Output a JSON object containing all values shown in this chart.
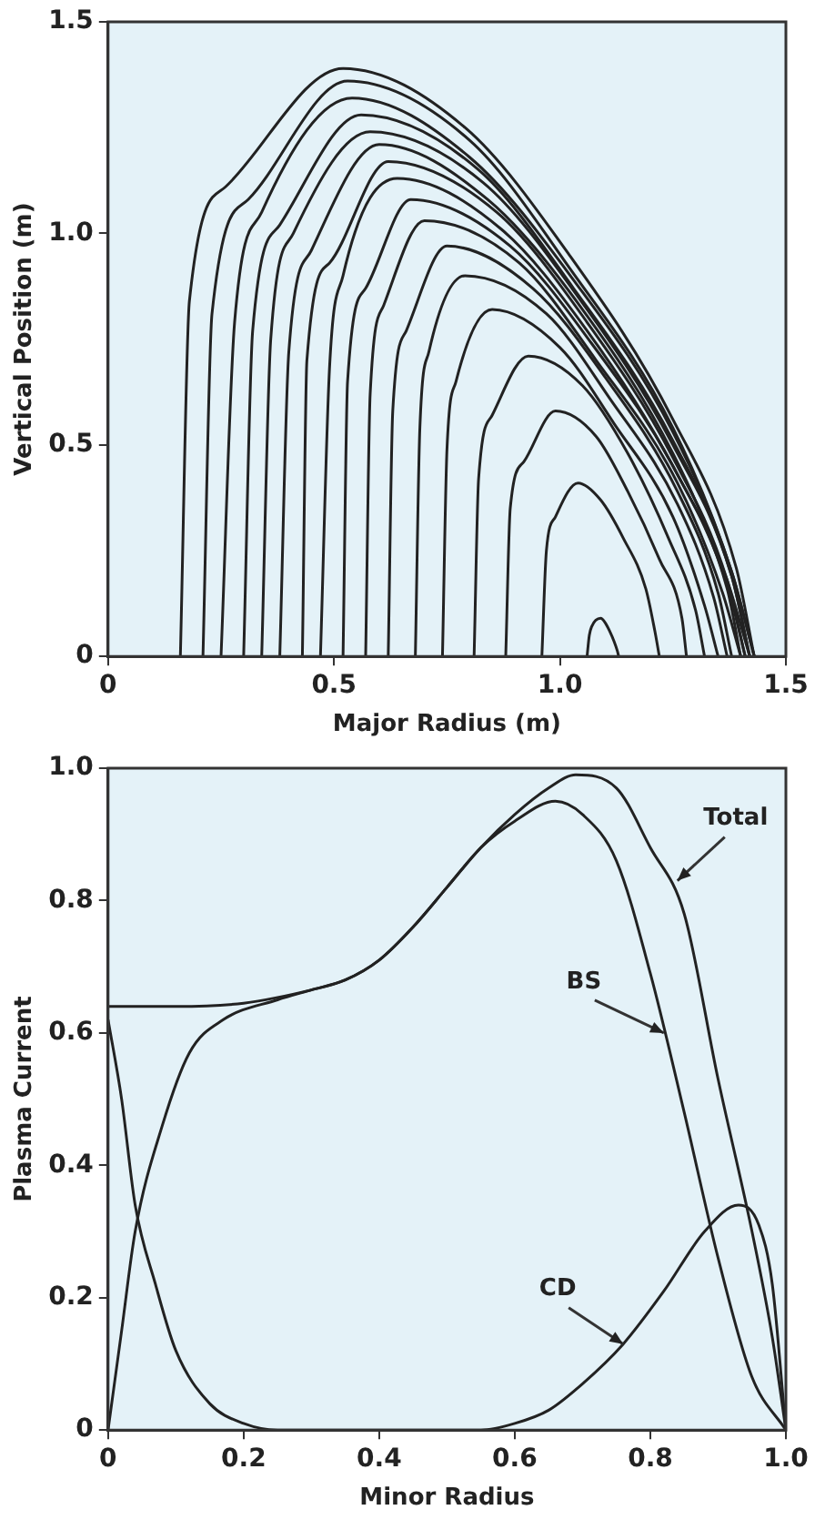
{
  "chart_data": [
    {
      "type": "line",
      "xlabel": "Major Radius (m)",
      "ylabel": "Vertical Position (m)",
      "xlim": [
        0,
        1.5
      ],
      "ylim": [
        0,
        1.5
      ],
      "xticks": [
        0,
        0.5,
        {
          "value": 1,
          "label": "1.0"
        },
        1.5
      ],
      "yticks": [
        0,
        0.5,
        {
          "value": 1,
          "label": "1.0"
        },
        1.5
      ],
      "marker": "none",
      "line_style": "solid",
      "series": [
        {
          "color": "#222222",
          "x": [
            0.16,
            0.18,
            0.26,
            0.52,
            0.79,
            1.02,
            1.25,
            1.39,
            1.43
          ],
          "values": [
            0,
            0.84,
            1.11,
            1.39,
            1.25,
            0.95,
            0.56,
            0.21,
            0
          ]
        },
        {
          "color": "#222222",
          "x": [
            0.21,
            0.23,
            0.31,
            0.53,
            0.8,
            1.02,
            1.25,
            1.38,
            1.43
          ],
          "values": [
            0,
            0.81,
            1.08,
            1.36,
            1.22,
            0.92,
            0.54,
            0.2,
            0
          ]
        },
        {
          "color": "#222222",
          "x": [
            0.25,
            0.28,
            0.34,
            0.54,
            0.8,
            1.03,
            1.25,
            1.38,
            1.43
          ],
          "values": [
            0,
            0.79,
            1.05,
            1.32,
            1.18,
            0.89,
            0.53,
            0.2,
            0
          ]
        },
        {
          "color": "#222222",
          "x": [
            0.3,
            0.32,
            0.38,
            0.56,
            0.82,
            1.03,
            1.25,
            1.38,
            1.42
          ],
          "values": [
            0,
            0.77,
            1.02,
            1.28,
            1.15,
            0.87,
            0.51,
            0.19,
            0
          ]
        },
        {
          "color": "#222222",
          "x": [
            0.34,
            0.36,
            0.41,
            0.58,
            0.83,
            1.04,
            1.25,
            1.38,
            1.42
          ],
          "values": [
            0,
            0.75,
            1.0,
            1.24,
            1.12,
            0.85,
            0.5,
            0.19,
            0
          ]
        },
        {
          "color": "#222222",
          "x": [
            0.38,
            0.4,
            0.45,
            0.6,
            0.84,
            1.05,
            1.25,
            1.37,
            1.42
          ],
          "values": [
            0,
            0.72,
            0.96,
            1.21,
            1.08,
            0.82,
            0.48,
            0.18,
            0
          ]
        },
        {
          "color": "#222222",
          "x": [
            0.43,
            0.44,
            0.49,
            0.62,
            0.86,
            1.06,
            1.25,
            1.37,
            1.41
          ],
          "values": [
            0,
            0.7,
            0.93,
            1.17,
            1.05,
            0.79,
            0.47,
            0.18,
            0
          ]
        },
        {
          "color": "#222222",
          "x": [
            0.47,
            0.49,
            0.52,
            0.64,
            0.87,
            1.06,
            1.25,
            1.37,
            1.41
          ],
          "values": [
            0,
            0.68,
            0.9,
            1.13,
            1.01,
            0.77,
            0.45,
            0.17,
            0
          ]
        },
        {
          "color": "#222222",
          "x": [
            0.52,
            0.53,
            0.57,
            0.67,
            0.89,
            1.07,
            1.26,
            1.37,
            1.4
          ],
          "values": [
            0,
            0.65,
            0.87,
            1.08,
            0.97,
            0.74,
            0.43,
            0.16,
            0
          ]
        },
        {
          "color": "#222222",
          "x": [
            0.57,
            0.58,
            0.61,
            0.7,
            0.91,
            1.08,
            1.26,
            1.36,
            1.4
          ],
          "values": [
            0,
            0.62,
            0.83,
            1.03,
            0.93,
            0.7,
            0.41,
            0.15,
            0
          ]
        },
        {
          "color": "#222222",
          "x": [
            0.62,
            0.63,
            0.66,
            0.75,
            0.94,
            1.1,
            1.26,
            1.35,
            1.38
          ],
          "values": [
            0,
            0.58,
            0.77,
            0.97,
            0.87,
            0.66,
            0.39,
            0.15,
            0
          ]
        },
        {
          "color": "#222222",
          "x": [
            0.68,
            0.69,
            0.71,
            0.79,
            0.97,
            1.11,
            1.26,
            1.34,
            1.37
          ],
          "values": [
            0,
            0.54,
            0.72,
            0.9,
            0.81,
            0.61,
            0.36,
            0.14,
            0
          ]
        },
        {
          "color": "#222222",
          "x": [
            0.74,
            0.75,
            0.77,
            0.85,
            1.0,
            1.12,
            1.25,
            1.32,
            1.35
          ],
          "values": [
            0,
            0.49,
            0.65,
            0.82,
            0.73,
            0.55,
            0.33,
            0.12,
            0
          ]
        },
        {
          "color": "#222222",
          "x": [
            0.81,
            0.82,
            0.85,
            0.93,
            1.05,
            1.15,
            1.24,
            1.3,
            1.32
          ],
          "values": [
            0,
            0.42,
            0.57,
            0.71,
            0.64,
            0.48,
            0.28,
            0.11,
            0
          ]
        },
        {
          "color": "#222222",
          "x": [
            0.88,
            0.89,
            0.92,
            0.99,
            1.08,
            1.15,
            1.22,
            1.27,
            1.28
          ],
          "values": [
            0,
            0.35,
            0.46,
            0.58,
            0.52,
            0.39,
            0.23,
            0.09,
            0
          ]
        },
        {
          "color": "#222222",
          "x": [
            0.96,
            0.97,
            0.99,
            1.04,
            1.09,
            1.14,
            1.19,
            1.21,
            1.22
          ],
          "values": [
            0,
            0.25,
            0.33,
            0.41,
            0.37,
            0.28,
            0.16,
            0.06,
            0
          ]
        },
        {
          "color": "#222222",
          "x": [
            1.06,
            1.065,
            1.07,
            1.09,
            1.1,
            1.11,
            1.12,
            1.127,
            1.13
          ],
          "values": [
            0,
            0.05,
            0.07,
            0.09,
            0.08,
            0.06,
            0.035,
            0.013,
            0
          ]
        }
      ]
    },
    {
      "type": "line",
      "xlabel": "Minor Radius",
      "ylabel": "Plasma Current",
      "xlim": [
        0,
        1
      ],
      "ylim": [
        0,
        1
      ],
      "xticks": [
        0,
        0.2,
        0.4,
        0.6,
        0.8,
        {
          "value": 1,
          "label": "1.0"
        }
      ],
      "yticks": [
        0,
        0.2,
        0.4,
        0.6,
        0.8,
        {
          "value": 1,
          "label": "1.0"
        }
      ],
      "marker": "none",
      "line_style": "solid",
      "series": [
        {
          "color": "#222222",
          "x": [
            0,
            0.1,
            0.2,
            0.3,
            0.35,
            0.4,
            0.45,
            0.5,
            0.55,
            0.6,
            0.65,
            0.69,
            0.75,
            0.8,
            0.85,
            0.9,
            0.95,
            0.98,
            1.0
          ],
          "values": [
            0.64,
            0.64,
            0.645,
            0.665,
            0.68,
            0.71,
            0.76,
            0.82,
            0.88,
            0.93,
            0.97,
            0.99,
            0.97,
            0.88,
            0.78,
            0.53,
            0.3,
            0.14,
            0
          ]
        },
        {
          "color": "#222222",
          "x": [
            0,
            0.02,
            0.04,
            0.08,
            0.12,
            0.17,
            0.25,
            0.3,
            0.35,
            0.4,
            0.45,
            0.5,
            0.55,
            0.6,
            0.66,
            0.7,
            0.75,
            0.8,
            0.85,
            0.9,
            0.95,
            1.0
          ],
          "values": [
            0,
            0.15,
            0.3,
            0.46,
            0.57,
            0.62,
            0.65,
            0.665,
            0.68,
            0.71,
            0.76,
            0.82,
            0.88,
            0.92,
            0.95,
            0.93,
            0.86,
            0.69,
            0.48,
            0.26,
            0.08,
            0
          ]
        },
        {
          "color": "#222222",
          "x": [
            0,
            0.02,
            0.04,
            0.07,
            0.1,
            0.15,
            0.2,
            0.25,
            0.55,
            0.6,
            0.65,
            0.7,
            0.76,
            0.82,
            0.88,
            0.93,
            0.96,
            0.98,
            1.0
          ],
          "values": [
            0.62,
            0.5,
            0.34,
            0.22,
            0.12,
            0.04,
            0.01,
            0,
            0,
            0.01,
            0.03,
            0.07,
            0.13,
            0.21,
            0.3,
            0.34,
            0.31,
            0.22,
            0
          ]
        }
      ],
      "annotations": [
        {
          "text": "Total",
          "x": 0.84,
          "y": 0.83
        },
        {
          "text": "BS",
          "x": 0.82,
          "y": 0.6
        },
        {
          "text": "CD",
          "x": 0.76,
          "y": 0.13
        }
      ]
    }
  ]
}
